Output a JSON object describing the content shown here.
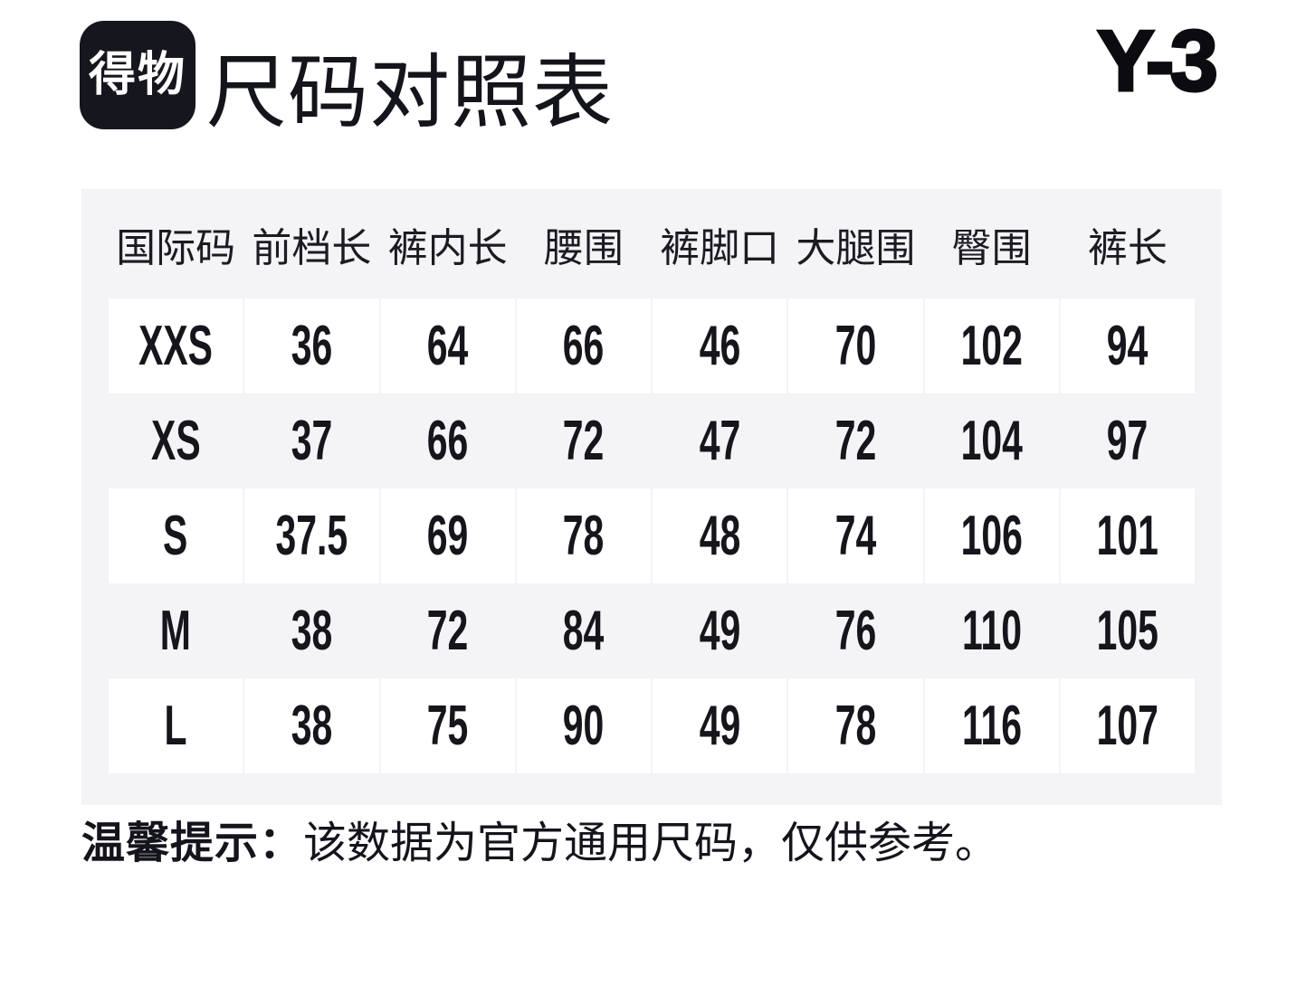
{
  "header": {
    "logo_text": "得物",
    "title": "尺码对照表",
    "brand": "Y-3"
  },
  "chart_data": {
    "type": "table",
    "title": "尺码对照表",
    "columns": [
      "国际码",
      "前档长",
      "裤内长",
      "腰围",
      "裤脚口",
      "大腿围",
      "臀围",
      "裤长"
    ],
    "rows": [
      [
        "XXS",
        "36",
        "64",
        "66",
        "46",
        "70",
        "102",
        "94"
      ],
      [
        "XS",
        "37",
        "66",
        "72",
        "47",
        "72",
        "104",
        "97"
      ],
      [
        "S",
        "37.5",
        "69",
        "78",
        "48",
        "74",
        "106",
        "101"
      ],
      [
        "M",
        "38",
        "72",
        "84",
        "49",
        "76",
        "110",
        "105"
      ],
      [
        "L",
        "38",
        "75",
        "90",
        "49",
        "78",
        "116",
        "107"
      ]
    ]
  },
  "footer": {
    "tip_label": "温馨提示：",
    "tip_text": "该数据为官方通用尺码，仅供参考。"
  },
  "colors": {
    "logo_bg": "#16161e",
    "title_color": "#14141c",
    "brand_color": "#0c0c10",
    "panel_bg": "#f4f4f7",
    "cell_bg": "#ffffff",
    "header_color": "#1b1b22",
    "text_color": "#15151b"
  }
}
